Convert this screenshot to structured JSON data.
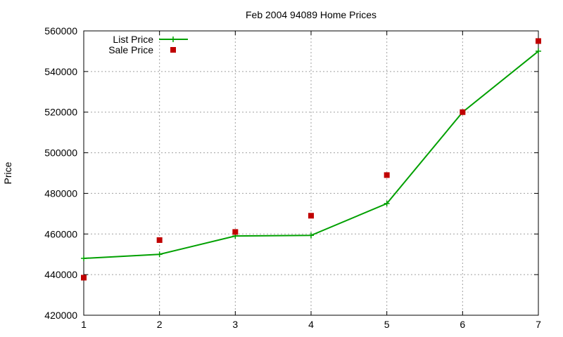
{
  "chart_data": {
    "type": "line",
    "title": "Feb 2004 94089 Home Prices",
    "xlabel": "",
    "ylabel": "Price",
    "x": [
      1,
      2,
      3,
      4,
      5,
      6,
      7
    ],
    "xlim": [
      1,
      7
    ],
    "ylim": [
      420000,
      560000
    ],
    "x_ticks": [
      "1",
      "2",
      "3",
      "4",
      "5",
      "6",
      "7"
    ],
    "y_ticks": [
      "420000",
      "440000",
      "460000",
      "480000",
      "500000",
      "520000",
      "540000",
      "560000"
    ],
    "grid": true,
    "legend_position": "top-left",
    "series": [
      {
        "name": "List Price",
        "style": "line-with-plus-markers",
        "color": "#00a000",
        "values": [
          448000,
          450000,
          459000,
          459300,
          475000,
          520000,
          550000
        ]
      },
      {
        "name": "Sale Price",
        "style": "square-markers",
        "color": "#c00000",
        "values": [
          438500,
          457000,
          461000,
          469000,
          489000,
          520000,
          555000
        ]
      }
    ]
  }
}
